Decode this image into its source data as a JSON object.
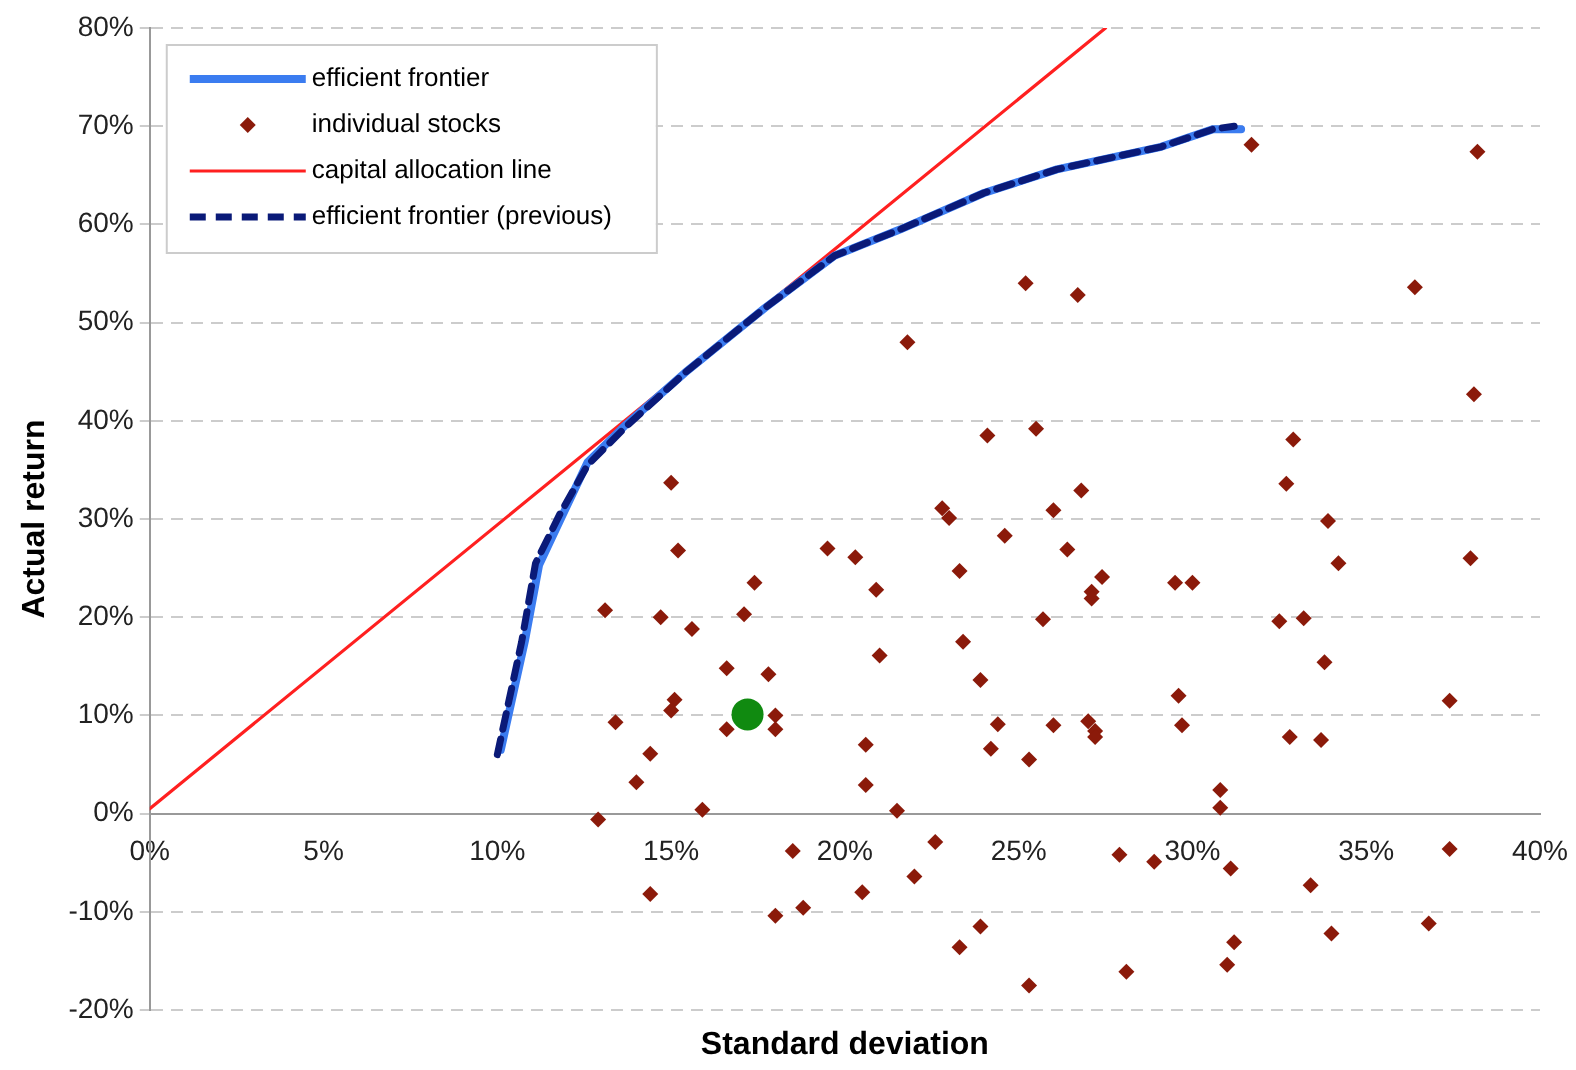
{
  "chart_data": {
    "type": "scatter",
    "xlabel": "Standard deviation",
    "ylabel": "Actual return",
    "legend": "top left",
    "grid": "y",
    "xlim": [
      0,
      40
    ],
    "xticks": [
      {
        "value": 0,
        "label": "0%"
      },
      {
        "value": 5,
        "label": "5%"
      },
      {
        "value": 10,
        "label": "10%"
      },
      {
        "value": 15,
        "label": "15%"
      },
      {
        "value": 20,
        "label": "20%"
      },
      {
        "value": 25,
        "label": "25%"
      },
      {
        "value": 30,
        "label": "30%"
      },
      {
        "value": 35,
        "label": "35%"
      },
      {
        "value": 40,
        "label": "40%"
      }
    ],
    "ylim": [
      -20,
      80
    ],
    "yticks": [
      {
        "value": -20,
        "label": "-20%"
      },
      {
        "value": -10,
        "label": "-10%"
      },
      {
        "value": 0,
        "label": "0%"
      },
      {
        "value": 10,
        "label": "10%"
      },
      {
        "value": 20,
        "label": "20%"
      },
      {
        "value": 30,
        "label": "30%"
      },
      {
        "value": 40,
        "label": "40%"
      },
      {
        "value": 50,
        "label": "50%"
      },
      {
        "value": 60,
        "label": "60%"
      },
      {
        "value": 70,
        "label": "70%"
      },
      {
        "value": 80,
        "label": "80%"
      }
    ],
    "series": [
      {
        "name": "efficient frontier",
        "type": "line",
        "color": "#3b7cf0",
        "marker": "none",
        "line_style": "solid",
        "x": [
          10.1,
          10.8,
          11.2,
          11.85,
          12.6,
          13.7,
          15.4,
          17.7,
          19.7,
          21.6,
          24.0,
          26.1,
          29.1,
          30.6,
          31.4
        ],
        "values": [
          6.5,
          17.7,
          25.3,
          30.2,
          35.8,
          39.6,
          44.9,
          51.5,
          56.8,
          59.5,
          63.2,
          65.6,
          67.9,
          69.7,
          69.7
        ]
      },
      {
        "name": "individual stocks",
        "type": "scatter",
        "color": "#8b1a0a",
        "marker": "diamond",
        "x": [
          31.7,
          38.2,
          25.2,
          26.7,
          21.8,
          15.0,
          13.1,
          15.2,
          14.7,
          15.6,
          17.4,
          17.1,
          16.6,
          17.8,
          15.1,
          15.0,
          13.4,
          16.6,
          18.0,
          18.0,
          14.4,
          14.0,
          15.9,
          12.9,
          14.4,
          18.5,
          18.0,
          18.8,
          19.5,
          20.3,
          20.9,
          21.0,
          20.6,
          20.6,
          21.5,
          20.5,
          22.0,
          22.6,
          22.8,
          23.0,
          24.1,
          24.6,
          23.3,
          23.4,
          23.9,
          24.4,
          24.2,
          23.3,
          23.9,
          25.3,
          25.3,
          36.4,
          38.1,
          25.5,
          32.9,
          26.8,
          32.7,
          26.0,
          26.4,
          33.9,
          34.2,
          38.0,
          27.4,
          27.1,
          27.1,
          29.5,
          30.0,
          25.7,
          32.5,
          33.2,
          33.8,
          29.6,
          37.4,
          26.0,
          27.0,
          27.2,
          27.2,
          29.7,
          32.8,
          33.7,
          30.8,
          30.8,
          27.9,
          28.9,
          31.1,
          33.4,
          37.4,
          34.0,
          36.8,
          31.2,
          31.0,
          28.1
        ],
        "values": [
          68.1,
          67.4,
          54.0,
          52.8,
          48.0,
          33.7,
          20.7,
          26.8,
          20.0,
          18.8,
          23.5,
          20.3,
          14.8,
          14.2,
          11.6,
          10.5,
          9.3,
          8.6,
          10.0,
          8.6,
          6.1,
          3.2,
          0.4,
          -0.6,
          -8.2,
          -3.8,
          -10.4,
          -9.6,
          27.0,
          26.1,
          22.8,
          16.1,
          7.0,
          2.9,
          0.3,
          -8.0,
          -6.4,
          -2.9,
          31.1,
          30.1,
          38.5,
          28.3,
          24.7,
          17.5,
          13.6,
          9.1,
          6.6,
          -13.6,
          -11.5,
          5.5,
          -17.5,
          53.6,
          42.7,
          39.2,
          38.1,
          32.9,
          33.6,
          30.9,
          26.9,
          29.8,
          25.5,
          26.0,
          24.1,
          22.6,
          21.9,
          23.5,
          23.5,
          19.8,
          19.6,
          19.9,
          15.4,
          12.0,
          11.5,
          9.0,
          9.4,
          8.4,
          7.8,
          9.0,
          7.8,
          7.5,
          2.4,
          0.6,
          -4.2,
          -4.9,
          -5.6,
          -7.3,
          -3.6,
          -12.2,
          -11.2,
          -13.1,
          -15.4,
          -16.1
        ]
      },
      {
        "name": "capital allocation line",
        "type": "line",
        "color": "#ff2020",
        "marker": "none",
        "line_style": "solid",
        "x": [
          0,
          27.5
        ],
        "values": [
          0.5,
          80
        ]
      },
      {
        "name": "efficient frontier (previous)",
        "type": "line",
        "color": "#0a1a78",
        "marker": "none",
        "line_style": "dashed",
        "x": [
          10,
          10.7,
          11.1,
          11.8,
          12.6,
          13.7,
          15.4,
          17.7,
          19.7,
          21.6,
          24,
          26.1,
          29.1,
          30.6,
          31.2
        ],
        "values": [
          6,
          17.5,
          25.5,
          30.5,
          35.5,
          39.4,
          44.9,
          51.5,
          56.8,
          59.5,
          63.2,
          65.6,
          67.9,
          69.7,
          70
        ]
      },
      {
        "type": "scatter",
        "color": "#108a10",
        "marker": "circle",
        "x": [
          17.2
        ],
        "values": [
          10.1
        ]
      }
    ]
  }
}
